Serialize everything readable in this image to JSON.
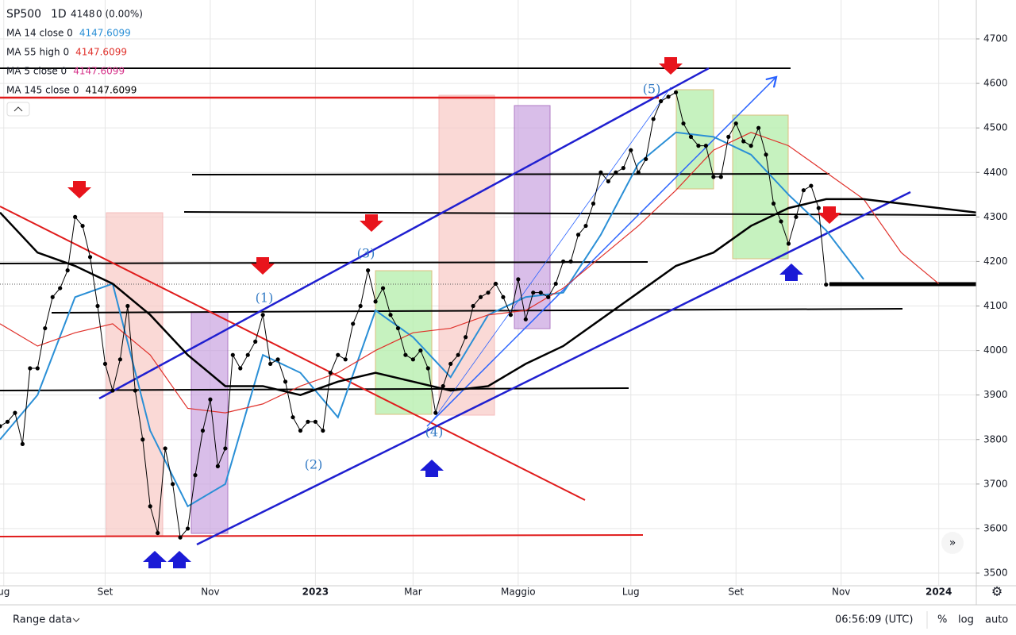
{
  "chart_data": {
    "type": "line",
    "title": "SP500",
    "interval": "1D",
    "last": 4148,
    "change": "0 (0.00%)",
    "x": [
      0,
      1,
      2,
      3,
      4,
      5,
      6,
      7,
      8,
      9,
      10,
      11,
      12,
      13,
      14,
      15,
      16,
      17,
      18,
      19,
      20,
      21,
      22,
      23,
      24,
      25,
      26,
      27,
      28,
      29,
      30,
      31,
      32,
      33,
      34,
      35,
      36,
      37,
      38,
      39,
      40,
      41,
      42,
      43,
      44,
      45,
      46,
      47,
      48,
      49,
      50,
      51,
      52,
      53,
      54,
      55,
      56,
      57,
      58,
      59,
      60,
      61,
      62,
      63,
      64,
      65,
      66,
      67,
      68,
      69,
      70,
      71,
      72,
      73,
      74,
      75,
      76,
      77,
      78,
      79,
      80,
      81,
      82,
      83,
      84,
      85,
      86,
      87,
      88,
      89,
      90,
      91,
      92,
      93,
      94,
      95,
      96,
      97,
      98,
      99,
      100,
      101,
      102,
      103,
      104,
      105,
      106,
      107,
      108,
      109,
      110
    ],
    "values": [
      3830,
      3840,
      3860,
      3790,
      3960,
      3960,
      4050,
      4120,
      4140,
      4180,
      4300,
      4280,
      4210,
      4100,
      3970,
      3910,
      3980,
      4100,
      3910,
      3800,
      3650,
      3590,
      3780,
      3700,
      3580,
      3600,
      3720,
      3820,
      3890,
      3740,
      3780,
      3990,
      3960,
      3990,
      4020,
      4080,
      3970,
      3980,
      3930,
      3850,
      3820,
      3840,
      3840,
      3820,
      3950,
      3990,
      3980,
      4060,
      4100,
      4180,
      4110,
      4140,
      4080,
      4050,
      3990,
      3980,
      4000,
      3960,
      3860,
      3920,
      3970,
      3990,
      4030,
      4100,
      4120,
      4130,
      4150,
      4120,
      4080,
      4160,
      4070,
      4130,
      4130,
      4120,
      4150,
      4200,
      4200,
      4260,
      4280,
      4330,
      4400,
      4380,
      4400,
      4410,
      4450,
      4400,
      4430,
      4520,
      4560,
      4570,
      4580,
      4510,
      4480,
      4460,
      4460,
      4390,
      4390,
      4480,
      4510,
      4470,
      4460,
      4500,
      4440,
      4330,
      4290,
      4240,
      4300,
      4360,
      4370,
      4320,
      4148
    ],
    "color": "#000000",
    "series": [
      {
        "name": "MA 14 close 0",
        "last": 4147.6099,
        "color": "#2a8fd6",
        "x": [
          0,
          5,
          10,
          15,
          20,
          25,
          30,
          35,
          40,
          45,
          50,
          55,
          60,
          65,
          70,
          75,
          80,
          85,
          90,
          95,
          100,
          105,
          110,
          115
        ],
        "values": [
          3800,
          3900,
          4120,
          4150,
          3820,
          3650,
          3700,
          3990,
          3950,
          3850,
          4090,
          4030,
          3940,
          4080,
          4120,
          4130,
          4260,
          4420,
          4490,
          4480,
          4440,
          4350,
          4270,
          4160
        ]
      },
      {
        "name": "MA 55 high 0",
        "last": 4147.6099,
        "color": "#e0312b",
        "x": [
          0,
          5,
          10,
          15,
          20,
          25,
          30,
          35,
          40,
          45,
          50,
          55,
          60,
          65,
          70,
          75,
          80,
          85,
          90,
          95,
          100,
          105,
          110,
          115,
          120,
          125
        ],
        "values": [
          4060,
          4010,
          4040,
          4060,
          3990,
          3870,
          3860,
          3880,
          3920,
          3950,
          4000,
          4040,
          4050,
          4080,
          4090,
          4140,
          4210,
          4280,
          4360,
          4450,
          4490,
          4460,
          4400,
          4340,
          4220,
          4150
        ]
      },
      {
        "name": "MA 5 close 0",
        "last": 4147.6099,
        "color": "#d6338a"
      },
      {
        "name": "MA 145 close 0",
        "last": 4147.6099,
        "color": "#000000",
        "x": [
          0,
          5,
          10,
          15,
          20,
          25,
          30,
          35,
          40,
          45,
          50,
          55,
          60,
          65,
          70,
          75,
          80,
          85,
          90,
          95,
          100,
          105,
          110,
          115,
          120,
          130
        ],
        "values": [
          4310,
          4220,
          4190,
          4150,
          4080,
          3990,
          3920,
          3920,
          3900,
          3930,
          3950,
          3930,
          3910,
          3920,
          3970,
          4010,
          4070,
          4130,
          4190,
          4220,
          4280,
          4320,
          4340,
          4340,
          4330,
          4310
        ]
      }
    ],
    "xlim": [
      0,
      130
    ],
    "xticks": [
      {
        "value": 0.5,
        "label": "ug"
      },
      {
        "value": 14,
        "label": "Set"
      },
      {
        "value": 28,
        "label": "Nov"
      },
      {
        "value": 42,
        "label": "2023"
      },
      {
        "value": 55,
        "label": "Mar"
      },
      {
        "value": 69,
        "label": "Maggio"
      },
      {
        "value": 84,
        "label": "Lug"
      },
      {
        "value": 98,
        "label": "Set"
      },
      {
        "value": 112,
        "label": "Nov"
      },
      {
        "value": 125,
        "label": "2024"
      }
    ],
    "ylim": [
      3500,
      4700
    ],
    "yticks": [
      3500,
      3600,
      3700,
      3800,
      3900,
      4000,
      4100,
      4200,
      4300,
      4400,
      4500,
      4600,
      4700
    ],
    "grid": true,
    "wave_labels": [
      "(1)",
      "(2)",
      "(3)",
      "(4)",
      "(5)"
    ]
  },
  "toolbar": {
    "range": "Range data",
    "time": "06:56:09 (UTC)",
    "percent": "%",
    "log": "log",
    "auto": "auto"
  }
}
